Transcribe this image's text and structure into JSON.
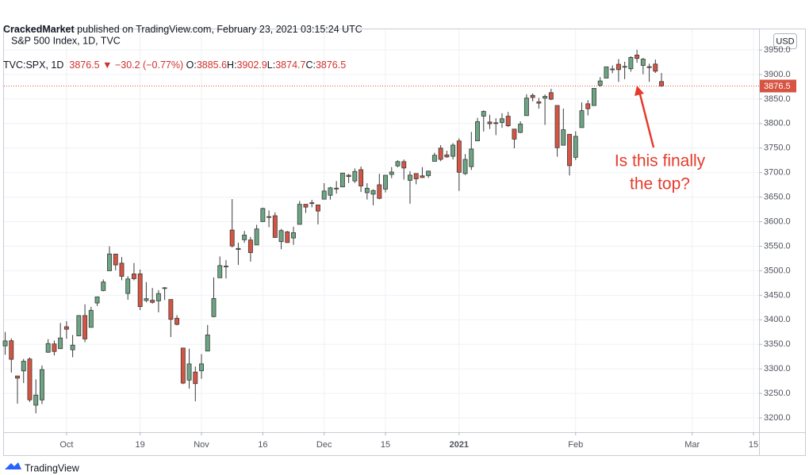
{
  "header": {
    "author": "CrackedMarket",
    "published": "published on TradingView.com, February 23, 2021 03:15:24 UTC",
    "symbol": "TVC:SPX, 1D",
    "last": "3876.5",
    "arrow": "▼",
    "change": "−30.2 (−0.77%)",
    "ohlc": [
      {
        "key": "O:",
        "value": "3885.6"
      },
      {
        "key": "H:",
        "value": "3902.9"
      },
      {
        "key": "L:",
        "value": "3874.7"
      },
      {
        "key": "C:",
        "value": "3876.5"
      }
    ]
  },
  "footer": {
    "brand": "TradingView"
  },
  "chart_data": {
    "type": "candlestick",
    "title": "S&P 500 Index, 1D, TVC",
    "currency": "USD",
    "up_color": "#6ba583",
    "down_color": "#d75442",
    "grid": true,
    "annotation": [
      "Is this finally",
      "the top?"
    ],
    "annotation_color": "#e53b2c",
    "price_label": {
      "value": 3876.5,
      "label": "3876.5"
    },
    "xlim": [
      -0.2,
      122.9
    ],
    "xticks": [
      {
        "value": 10,
        "label": "Oct"
      },
      {
        "value": 22,
        "label": "19"
      },
      {
        "value": 32,
        "label": "Nov"
      },
      {
        "value": 42,
        "label": "16"
      },
      {
        "value": 52,
        "label": "Dec"
      },
      {
        "value": 62,
        "label": "15"
      },
      {
        "value": 74,
        "label": "2021"
      },
      {
        "value": 93,
        "label": "Feb"
      },
      {
        "value": 112,
        "label": "Mar"
      },
      {
        "value": 122,
        "label": "15"
      }
    ],
    "ylim": [
      3171,
      3992
    ],
    "yticks": [
      {
        "value": 3200,
        "label": "3200.0"
      },
      {
        "value": 3250,
        "label": "3250.0"
      },
      {
        "value": 3300,
        "label": "3300.0"
      },
      {
        "value": 3350,
        "label": "3350.0"
      },
      {
        "value": 3400,
        "label": "3400.0"
      },
      {
        "value": 3450,
        "label": "3450.0"
      },
      {
        "value": 3500,
        "label": "3500.0"
      },
      {
        "value": 3550,
        "label": "3550.0"
      },
      {
        "value": 3600,
        "label": "3600.0"
      },
      {
        "value": 3650,
        "label": "3650.0"
      },
      {
        "value": 3700,
        "label": "3700.0"
      },
      {
        "value": 3750,
        "label": "3750.0"
      },
      {
        "value": 3800,
        "label": "3800.0"
      },
      {
        "value": 3850,
        "label": "3850.0"
      },
      {
        "value": 3900,
        "label": "3900.0"
      },
      {
        "value": 3950,
        "label": "3950.0"
      }
    ],
    "open": [
      3346.9,
      3357.4,
      3285.6,
      3295.8,
      3320.1,
      3226.1,
      3236.7,
      3333.9,
      3350.9,
      3341.2,
      3385.9,
      3338.9,
      3367.3,
      3408.7,
      3384.6,
      3434.3,
      3459.7,
      3500.0,
      3534.0,
      3515.5,
      3453.7,
      3493.5,
      3493.7,
      3439.4,
      3439.9,
      3438.5,
      3464.9,
      3441.4,
      3403.2,
      3342.5,
      3277.2,
      3293.6,
      3296.2,
      3336.3,
      3406.5,
      3485.7,
      3508.3,
      3583.0,
      3543.3,
      3563.2,
      3562.7,
      3552.6,
      3600.2,
      3610.3,
      3612.1,
      3559.4,
      3579.3,
      3566.8,
      3594.5,
      3635.5,
      3638.6,
      3634.2,
      3645.9,
      3653.8,
      3668.3,
      3670.9,
      3694.7,
      3683.1,
      3706.0,
      3659.1,
      3656.1,
      3675.3,
      3666.4,
      3696.3,
      3713.7,
      3722.4,
      3684.3,
      3698.1,
      3693.4,
      3694.0,
      3723.0,
      3750.0,
      3736.2,
      3733.3,
      3764.6,
      3698.0,
      3712.2,
      3764.7,
      3815.1,
      3803.1,
      3801.6,
      3802.2,
      3815.0,
      3788.7,
      3781.9,
      3816.2,
      3857.5,
      3844.2,
      3851.7,
      3863.0,
      3836.8,
      3755.8,
      3778.1,
      3731.2,
      3791.8,
      3840.3,
      3836.7,
      3878.3,
      3892.6,
      3910.5,
      3920.8,
      3916.4,
      3911.7,
      3939.6,
      3918.5,
      3915.9,
      3921.2,
      3885.6
    ],
    "high": [
      3375.2,
      3362.3,
      3285.6,
      3320.3,
      3323.4,
      3278.7,
      3306.9,
      3360.7,
      3357.9,
      3393.6,
      3397.2,
      3369.1,
      3409.6,
      3431.6,
      3426.3,
      3447.3,
      3482.3,
      3549.9,
      3534.0,
      3527.9,
      3489.1,
      3515.8,
      3502.4,
      3476.9,
      3464.9,
      3460.5,
      3466.5,
      3441.4,
      3409.5,
      3342.5,
      3341.1,
      3304.9,
      3330.1,
      3389.5,
      3486.3,
      3529.1,
      3521.6,
      3646.0,
      3557.2,
      3581.2,
      3569.0,
      3593.7,
      3628.5,
      3623.1,
      3619.1,
      3585.2,
      3581.2,
      3589.8,
      3642.3,
      3635.5,
      3644.3,
      3634.2,
      3678.5,
      3671.0,
      3682.7,
      3699.2,
      3697.4,
      3708.5,
      3712.4,
      3678.5,
      3665.9,
      3697.6,
      3695.3,
      3711.3,
      3725.1,
      3726.7,
      3702.9,
      3698.3,
      3711.2,
      3703.8,
      3740.5,
      3756.1,
      3744.6,
      3760.2,
      3770.0,
      3737.8,
      3783.0,
      3811.6,
      3826.7,
      3817.9,
      3810.8,
      3821.0,
      3823.6,
      3788.7,
      3804.5,
      3859.8,
      3861.5,
      3852.3,
      3859.2,
      3870.9,
      3836.8,
      3830.5,
      3778.1,
      3784.3,
      3843.1,
      3847.5,
      3872.4,
      3894.6,
      3915.8,
      3918.4,
      3931.5,
      3926.0,
      3937.2,
      3950.4,
      3933.6,
      3922.0,
      3930.4,
      3902.9
    ],
    "low": [
      3328.8,
      3292.4,
      3229.1,
      3271.0,
      3232.6,
      3209.5,
      3228.4,
      3332.9,
      3327.5,
      3340.5,
      3361.4,
      3323.7,
      3367.3,
      3354.5,
      3384.6,
      3428.2,
      3458.1,
      3499.6,
      3500.9,
      3480.6,
      3440.9,
      3480.5,
      3419.9,
      3435.7,
      3433.1,
      3415.3,
      3440.5,
      3364.9,
      3388.7,
      3268.9,
      3259.8,
      3233.9,
      3279.7,
      3336.3,
      3405.2,
      3485.7,
      3484.3,
      3547.5,
      3511.9,
      3557.0,
      3518.6,
      3552.6,
      3600.2,
      3588.7,
      3567.3,
      3543.8,
      3556.9,
      3552.8,
      3594.5,
      3617.8,
      3629.3,
      3594.4,
      3645.9,
      3644.8,
      3657.2,
      3670.9,
      3678.9,
      3678.8,
      3660.5,
      3645.2,
      3633.4,
      3645.8,
      3659.6,
      3688.6,
      3710.9,
      3685.8,
      3636.5,
      3676.2,
      3689.3,
      3689.3,
      3723.0,
      3723.3,
      3730.2,
      3726.9,
      3662.7,
      3695.1,
      3705.3,
      3764.7,
      3783.6,
      3789.0,
      3776.5,
      3791.5,
      3792.9,
      3749.6,
      3780.4,
      3816.2,
      3845.1,
      3830.4,
      3797.2,
      3847.8,
      3732.5,
      3755.8,
      3694.1,
      3725.6,
      3791.8,
      3816.7,
      3836.7,
      3874.9,
      3892.6,
      3902.6,
      3884.9,
      3890.4,
      3905.8,
      3923.9,
      3900.4,
      3885.0,
      3903.1,
      3874.7
    ],
    "close": [
      3357.0,
      3319.5,
      3281.1,
      3315.6,
      3236.9,
      3246.6,
      3298.5,
      3351.6,
      3335.5,
      3363.0,
      3380.8,
      3348.4,
      3408.6,
      3361.0,
      3419.4,
      3446.8,
      3477.1,
      3534.2,
      3511.9,
      3488.7,
      3483.3,
      3483.8,
      3426.9,
      3443.1,
      3435.6,
      3453.5,
      3465.4,
      3401.0,
      3390.7,
      3271.0,
      3310.1,
      3270.0,
      3310.2,
      3369.2,
      3443.4,
      3510.5,
      3509.4,
      3550.5,
      3545.5,
      3572.7,
      3537.0,
      3585.2,
      3626.9,
      3609.5,
      3567.8,
      3581.9,
      3557.5,
      3577.6,
      3635.4,
      3629.7,
      3638.4,
      3621.6,
      3662.5,
      3669.0,
      3666.7,
      3699.1,
      3692.0,
      3702.3,
      3672.8,
      3668.1,
      3663.5,
      3647.5,
      3694.6,
      3701.2,
      3722.5,
      3709.4,
      3694.9,
      3687.3,
      3690.0,
      3703.1,
      3735.4,
      3727.0,
      3732.0,
      3756.1,
      3700.7,
      3726.9,
      3748.1,
      3803.8,
      3824.7,
      3799.6,
      3801.2,
      3809.8,
      3795.5,
      3768.3,
      3798.9,
      3851.9,
      3853.1,
      3841.5,
      3855.4,
      3849.6,
      3750.8,
      3787.4,
      3714.2,
      3773.9,
      3826.3,
      3830.2,
      3871.7,
      3886.8,
      3915.6,
      3911.2,
      3909.9,
      3916.4,
      3934.8,
      3932.6,
      3931.3,
      3914.0,
      3906.7,
      3876.5
    ]
  }
}
